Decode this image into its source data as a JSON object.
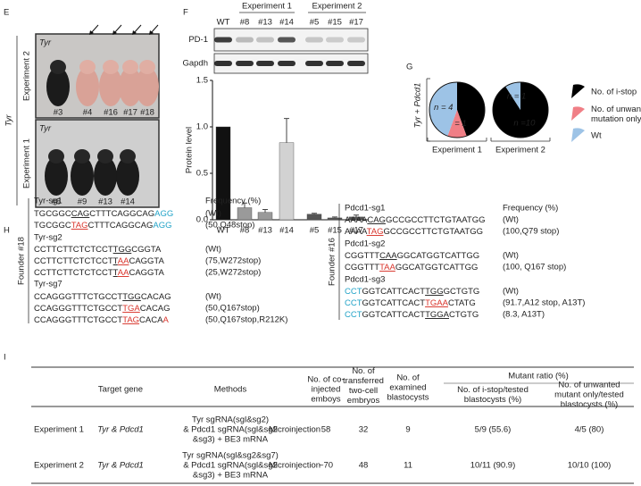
{
  "panels": {
    "E": {
      "label": "E",
      "group_label": "Tyr",
      "rows": [
        {
          "name": "Experiment 2",
          "strain": "Tyr",
          "mice": [
            "#3",
            "#4",
            "#16",
            "#17",
            "#18"
          ]
        },
        {
          "name": "Experiment 1",
          "strain": "Tyr",
          "mice": [
            "#8",
            "#9",
            "#13",
            "#14"
          ]
        }
      ]
    },
    "F": {
      "label": "F",
      "groups": [
        "Experiment 1",
        "Experiment 2"
      ],
      "blots": [
        "PD-1",
        "Gapdh"
      ]
    },
    "G": {
      "label": "G",
      "group_label": "Tyr + Pdcd1",
      "legend": [
        [
          "No. of i-stop"
        ],
        [
          "No. of unwanted",
          "mutation only"
        ],
        [
          "Wt"
        ]
      ]
    },
    "H": {
      "label": "H",
      "founders": [
        {
          "name": "Founder #18",
          "frequency_header": "Frequency (%)",
          "guides": [
            {
              "name": "Tyr-sg1",
              "lines": [
                {
                  "seq": [
                    {
                      "text": "TGCGGC"
                    },
                    {
                      "text": "CAG",
                      "format": "u"
                    },
                    {
                      "text": "CTTTCAGGCAG"
                    },
                    {
                      "text": "AGG",
                      "format": "c"
                    }
                  ],
                  "note": "(Wt)"
                },
                {
                  "seq": [
                    {
                      "text": "TGCGGC"
                    },
                    {
                      "text": "TAG",
                      "format": "ur"
                    },
                    {
                      "text": "CTTTCAGGCAG"
                    },
                    {
                      "text": "AGG",
                      "format": "c"
                    }
                  ],
                  "note": "(50,Q48stop)"
                }
              ]
            },
            {
              "name": "Tyr-sg2",
              "lines": [
                {
                  "seq": [
                    {
                      "text": "CCTTCTTCTCTCCT"
                    },
                    {
                      "text": "TGG",
                      "format": "u"
                    },
                    {
                      "text": "CGGTA"
                    }
                  ],
                  "note": "(Wt)"
                },
                {
                  "seq": [
                    {
                      "text": "CCTTCTTCTCTCCT"
                    },
                    {
                      "text": "T",
                      "format": "u"
                    },
                    {
                      "text": "AA",
                      "format": "ur"
                    },
                    {
                      "text": "CAGGTA"
                    }
                  ],
                  "note": "(75,W272stop)"
                },
                {
                  "seq": [
                    {
                      "text": "CCTTCTTCTCTCCT"
                    },
                    {
                      "text": "T",
                      "format": "u"
                    },
                    {
                      "text": "AA",
                      "format": "ur"
                    },
                    {
                      "text": "CAGGTA"
                    }
                  ],
                  "note": "(25,W272stop)"
                }
              ]
            },
            {
              "name": "Tyr-sg7",
              "lines": [
                {
                  "seq": [
                    {
                      "text": "CCAGGGTTTCTGCCT"
                    },
                    {
                      "text": "TGG",
                      "format": "u"
                    },
                    {
                      "text": "CACAG"
                    }
                  ],
                  "note": "(Wt)"
                },
                {
                  "seq": [
                    {
                      "text": "CCAGGGTTTCTGCCT"
                    },
                    {
                      "text": "TGA",
                      "format": "ur"
                    },
                    {
                      "text": "CACAG"
                    }
                  ],
                  "note": "(50,Q167stop)"
                },
                {
                  "seq": [
                    {
                      "text": "CCAGGGTTTCTGCCT"
                    },
                    {
                      "text": "TAG",
                      "format": "ur"
                    },
                    {
                      "text": "CACA"
                    },
                    {
                      "text": "A",
                      "format": "r"
                    }
                  ],
                  "note": "(50,Q167stop,R212K)"
                }
              ]
            }
          ]
        },
        {
          "name": "Founder #16",
          "frequency_header": "Frequency (%)",
          "guides": [
            {
              "name": "Pdcd1-sg1",
              "lines": [
                {
                  "seq": [
                    {
                      "text": "AAAA"
                    },
                    {
                      "text": "CAG",
                      "format": "u"
                    },
                    {
                      "text": "GCCGCCTTCTGTAATGG"
                    }
                  ],
                  "note": "(Wt)"
                },
                {
                  "seq": [
                    {
                      "text": "AAAA"
                    },
                    {
                      "text": "TAG",
                      "format": "ur"
                    },
                    {
                      "text": "GCCGCCTTCTGTAATGG"
                    }
                  ],
                  "note": "(100,Q79 stop)"
                }
              ]
            },
            {
              "name": "Pdcd1-sg2",
              "lines": [
                {
                  "seq": [
                    {
                      "text": "CGGTTT"
                    },
                    {
                      "text": "CAA",
                      "format": "u"
                    },
                    {
                      "text": "GGCATGGTCATTGG"
                    }
                  ],
                  "note": "(Wt)"
                },
                {
                  "seq": [
                    {
                      "text": "CGGTTT"
                    },
                    {
                      "text": "TAA",
                      "format": "ur"
                    },
                    {
                      "text": "GGCATGGTCATTGG"
                    }
                  ],
                  "note": "(100, Q167 stop)"
                }
              ]
            },
            {
              "name": "Pdcd1-sg3",
              "lines": [
                {
                  "seq": [
                    {
                      "text": "CCT",
                      "format": "c"
                    },
                    {
                      "text": "GGTCATTCACT"
                    },
                    {
                      "text": "TGG",
                      "format": "u"
                    },
                    {
                      "text": "GCTGTG"
                    }
                  ],
                  "note": "(Wt)"
                },
                {
                  "seq": [
                    {
                      "text": "CCT",
                      "format": "c"
                    },
                    {
                      "text": "GGTCATTCACT"
                    },
                    {
                      "text": "TGAA",
                      "format": "ur"
                    },
                    {
                      "text": "CTATG"
                    }
                  ],
                  "note": "(91.7,A12 stop, A13T)"
                },
                {
                  "seq": [
                    {
                      "text": "CCT",
                      "format": "c"
                    },
                    {
                      "text": "GGTCATTCACT"
                    },
                    {
                      "text": "TGGA",
                      "format": "u"
                    },
                    {
                      "text": "CTGTG"
                    }
                  ],
                  "note": "(8.3, A13T)"
                }
              ]
            }
          ]
        }
      ]
    },
    "I": {
      "label": "I"
    }
  },
  "chart_data": [
    {
      "type": "bar",
      "ylabel": "Protein level",
      "categories": [
        "WT",
        "#8",
        "#13",
        "#14",
        "#5",
        "#15",
        "#17"
      ],
      "values": [
        1.0,
        0.13,
        0.08,
        0.83,
        0.06,
        0.02,
        0.03
      ],
      "errors": [
        0,
        0.05,
        0.03,
        0.26,
        0.01,
        0.01,
        0.02
      ],
      "colors": [
        "#111111",
        "#9a9a9a",
        "#9a9a9a",
        "#d2d2d2",
        "#555555",
        "#555555",
        "#555555"
      ],
      "ylim": [
        0,
        1.5
      ],
      "yticks": [
        {
          "value": 0,
          "label": "0.0"
        },
        0.5,
        {
          "value": 1,
          "label": "1.0"
        },
        1.5
      ]
    },
    {
      "type": "pie",
      "title": "Experiment 1",
      "values": [
        4,
        1,
        4
      ],
      "value_labels": [
        null,
        "n = 1",
        "n = 4"
      ],
      "colors": [
        "#000000",
        "#f07f86",
        "#9dc3e6"
      ]
    },
    {
      "type": "pie",
      "title": "Experiment 2",
      "values": [
        10,
        0,
        1
      ],
      "value_labels": [
        "n =10",
        null,
        "n = 1"
      ],
      "colors": [
        "#000000",
        "#f07f86",
        "#9dc3e6"
      ]
    }
  ],
  "table": {
    "group_header": "Mutant ratio (%)",
    "columns": [
      null,
      [
        "Target gene"
      ],
      [
        "Methods"
      ],
      null,
      [
        "No. of co-",
        "injected",
        "emboys"
      ],
      [
        "No. of",
        "transferred",
        "two-cell",
        "embryos"
      ],
      [
        "No. of",
        "examined",
        "blastocysts"
      ],
      [
        "No. of i-stop/tested",
        "blastocysts (%)"
      ],
      [
        "No. of unwanted",
        "mutant only/tested",
        "blastocysts (%)"
      ]
    ],
    "rows": [
      [
        "Experiment 1",
        "Tyr & Pdcd1",
        [
          "Tyr sgRNA(sgl&sg2)",
          "& Pdcd1 sgRNA(sgl&sg2",
          "&sg3) + BE3 mRNA"
        ],
        "Microinjection",
        "58",
        "32",
        "9",
        "5/9 (55.6)",
        "4/5 (80)"
      ],
      [
        "Experiment 2",
        "Tyr & Pdcd1",
        [
          "Tyr sgRNA(sgl&sg2&sg7)",
          "& Pdcd1 sgRNA(sgl&sg2",
          "&sg3) + BE3 mRNA"
        ],
        "Microinjection",
        "~70",
        "48",
        "11",
        "10/11 (90.9)",
        "10/10 (100)"
      ]
    ]
  }
}
